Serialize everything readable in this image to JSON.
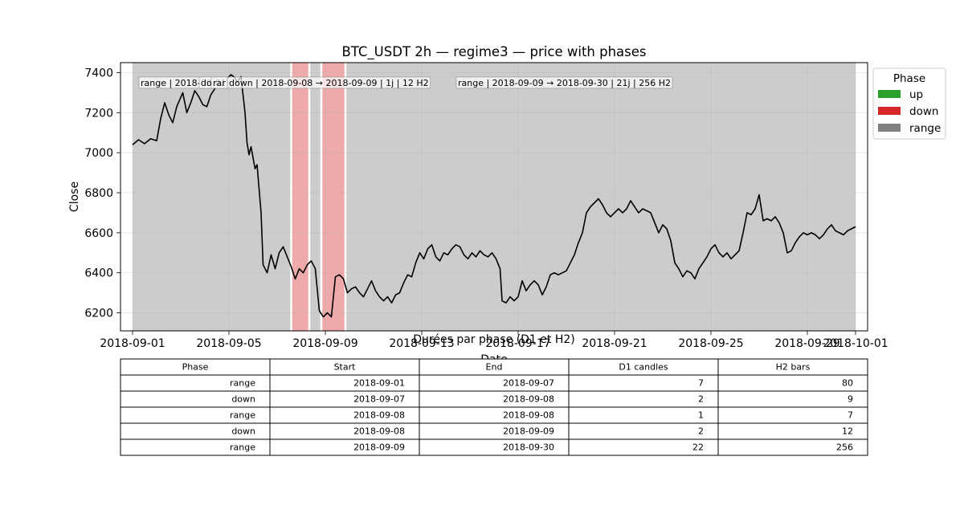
{
  "chart_data": {
    "type": "line",
    "title": "BTC_USDT 2h — regime3 — price with phases",
    "xlabel": "Date",
    "ylabel": "Close",
    "xlim": [
      "2018-08-31T12:00",
      "2018-10-01T12:00"
    ],
    "ylim": [
      6110,
      7450
    ],
    "x_ticks": [
      "2018-09-01",
      "2018-09-05",
      "2018-09-09",
      "2018-09-13",
      "2018-09-17",
      "2018-09-21",
      "2018-09-25",
      "2018-09-29",
      "2018-10-01"
    ],
    "y_ticks": [
      6200,
      6400,
      6600,
      6800,
      7000,
      7200,
      7400
    ],
    "grid": true,
    "legend": {
      "title": "Phase",
      "placement": "outside-top-right",
      "entries": [
        {
          "label": "up",
          "color": "#2ca02c"
        },
        {
          "label": "down",
          "color": "#d62728"
        },
        {
          "label": "range",
          "color": "#808080"
        }
      ]
    },
    "phases": [
      {
        "phase": "range",
        "start": "2018-09-01T00:00",
        "end": "2018-09-07T14:00"
      },
      {
        "phase": "down",
        "start": "2018-09-07T14:00",
        "end": "2018-09-08T08:00"
      },
      {
        "phase": "range",
        "start": "2018-09-08T08:00",
        "end": "2018-09-08T20:00"
      },
      {
        "phase": "down",
        "start": "2018-09-08T20:00",
        "end": "2018-09-09T20:00"
      },
      {
        "phase": "range",
        "start": "2018-09-09T20:00",
        "end": "2018-10-01T00:00"
      }
    ],
    "annotations": [
      {
        "text": "range | 2018-09-01",
        "x": "2018-09-01T00:00",
        "y": 7350
      },
      {
        "text": "do",
        "x": "2018-09-03T12:00",
        "y": 7350
      },
      {
        "text": "rar",
        "x": "2018-09-04T00:00",
        "y": 7350
      },
      {
        "text": "down | 2018-09-08 → 2018-09-09 | 1j | 12 H2",
        "x": "2018-09-04T16:00",
        "y": 7350
      },
      {
        "text": "range | 2018-09-09 → 2018-09-30 | 21j | 256 H2",
        "x": "2018-09-14T04:00",
        "y": 7350
      }
    ],
    "series": [
      {
        "name": "Close",
        "color": "#000000",
        "points": [
          [
            "2018-09-01T00:00",
            7040
          ],
          [
            "2018-09-01T06:00",
            7065
          ],
          [
            "2018-09-01T12:00",
            7045
          ],
          [
            "2018-09-01T18:00",
            7070
          ],
          [
            "2018-09-02T00:00",
            7060
          ],
          [
            "2018-09-02T04:00",
            7170
          ],
          [
            "2018-09-02T08:00",
            7250
          ],
          [
            "2018-09-02T12:00",
            7190
          ],
          [
            "2018-09-02T16:00",
            7150
          ],
          [
            "2018-09-02T20:00",
            7230
          ],
          [
            "2018-09-03T02:00",
            7300
          ],
          [
            "2018-09-03T06:00",
            7200
          ],
          [
            "2018-09-03T10:00",
            7250
          ],
          [
            "2018-09-03T14:00",
            7310
          ],
          [
            "2018-09-03T18:00",
            7280
          ],
          [
            "2018-09-03T22:00",
            7240
          ],
          [
            "2018-09-04T02:00",
            7230
          ],
          [
            "2018-09-04T06:00",
            7290
          ],
          [
            "2018-09-04T10:00",
            7320
          ],
          [
            "2018-09-04T14:00",
            7350
          ],
          [
            "2018-09-04T18:00",
            7330
          ],
          [
            "2018-09-04T22:00",
            7370
          ],
          [
            "2018-09-05T02:00",
            7390
          ],
          [
            "2018-09-05T06:00",
            7375
          ],
          [
            "2018-09-05T08:00",
            7350
          ],
          [
            "2018-09-05T12:00",
            7380
          ],
          [
            "2018-09-05T16:00",
            7200
          ],
          [
            "2018-09-05T18:00",
            7050
          ],
          [
            "2018-09-05T20:00",
            6990
          ],
          [
            "2018-09-05T22:00",
            7030
          ],
          [
            "2018-09-06T02:00",
            6920
          ],
          [
            "2018-09-06T04:00",
            6940
          ],
          [
            "2018-09-06T08:00",
            6700
          ],
          [
            "2018-09-06T10:00",
            6440
          ],
          [
            "2018-09-06T14:00",
            6400
          ],
          [
            "2018-09-06T18:00",
            6490
          ],
          [
            "2018-09-06T22:00",
            6420
          ],
          [
            "2018-09-07T02:00",
            6500
          ],
          [
            "2018-09-07T06:00",
            6530
          ],
          [
            "2018-09-07T10:00",
            6480
          ],
          [
            "2018-09-07T14:00",
            6430
          ],
          [
            "2018-09-07T18:00",
            6370
          ],
          [
            "2018-09-07T22:00",
            6420
          ],
          [
            "2018-09-08T02:00",
            6400
          ],
          [
            "2018-09-08T06:00",
            6440
          ],
          [
            "2018-09-08T10:00",
            6460
          ],
          [
            "2018-09-08T14:00",
            6420
          ],
          [
            "2018-09-08T18:00",
            6210
          ],
          [
            "2018-09-08T22:00",
            6180
          ],
          [
            "2018-09-09T02:00",
            6200
          ],
          [
            "2018-09-09T06:00",
            6180
          ],
          [
            "2018-09-09T10:00",
            6380
          ],
          [
            "2018-09-09T14:00",
            6390
          ],
          [
            "2018-09-09T18:00",
            6370
          ],
          [
            "2018-09-09T22:00",
            6300
          ],
          [
            "2018-09-10T02:00",
            6320
          ],
          [
            "2018-09-10T06:00",
            6330
          ],
          [
            "2018-09-10T10:00",
            6300
          ],
          [
            "2018-09-10T14:00",
            6280
          ],
          [
            "2018-09-10T18:00",
            6320
          ],
          [
            "2018-09-10T22:00",
            6360
          ],
          [
            "2018-09-11T02:00",
            6310
          ],
          [
            "2018-09-11T06:00",
            6280
          ],
          [
            "2018-09-11T10:00",
            6260
          ],
          [
            "2018-09-11T14:00",
            6280
          ],
          [
            "2018-09-11T18:00",
            6250
          ],
          [
            "2018-09-11T22:00",
            6290
          ],
          [
            "2018-09-12T02:00",
            6300
          ],
          [
            "2018-09-12T06:00",
            6350
          ],
          [
            "2018-09-12T10:00",
            6390
          ],
          [
            "2018-09-12T14:00",
            6380
          ],
          [
            "2018-09-12T18:00",
            6450
          ],
          [
            "2018-09-12T22:00",
            6500
          ],
          [
            "2018-09-13T02:00",
            6470
          ],
          [
            "2018-09-13T06:00",
            6520
          ],
          [
            "2018-09-13T10:00",
            6540
          ],
          [
            "2018-09-13T14:00",
            6480
          ],
          [
            "2018-09-13T18:00",
            6460
          ],
          [
            "2018-09-13T22:00",
            6500
          ],
          [
            "2018-09-14T02:00",
            6490
          ],
          [
            "2018-09-14T06:00",
            6520
          ],
          [
            "2018-09-14T10:00",
            6540
          ],
          [
            "2018-09-14T14:00",
            6530
          ],
          [
            "2018-09-14T18:00",
            6490
          ],
          [
            "2018-09-14T22:00",
            6470
          ],
          [
            "2018-09-15T02:00",
            6500
          ],
          [
            "2018-09-15T06:00",
            6480
          ],
          [
            "2018-09-15T10:00",
            6510
          ],
          [
            "2018-09-15T14:00",
            6490
          ],
          [
            "2018-09-15T18:00",
            6480
          ],
          [
            "2018-09-15T22:00",
            6500
          ],
          [
            "2018-09-16T02:00",
            6470
          ],
          [
            "2018-09-16T06:00",
            6420
          ],
          [
            "2018-09-16T08:00",
            6260
          ],
          [
            "2018-09-16T12:00",
            6250
          ],
          [
            "2018-09-16T16:00",
            6280
          ],
          [
            "2018-09-16T20:00",
            6260
          ],
          [
            "2018-09-17T00:00",
            6280
          ],
          [
            "2018-09-17T04:00",
            6360
          ],
          [
            "2018-09-17T08:00",
            6310
          ],
          [
            "2018-09-17T12:00",
            6340
          ],
          [
            "2018-09-17T16:00",
            6360
          ],
          [
            "2018-09-17T20:00",
            6340
          ],
          [
            "2018-09-18T00:00",
            6290
          ],
          [
            "2018-09-18T04:00",
            6330
          ],
          [
            "2018-09-18T08:00",
            6390
          ],
          [
            "2018-09-18T12:00",
            6400
          ],
          [
            "2018-09-18T16:00",
            6390
          ],
          [
            "2018-09-18T20:00",
            6400
          ],
          [
            "2018-09-19T00:00",
            6410
          ],
          [
            "2018-09-19T04:00",
            6450
          ],
          [
            "2018-09-19T08:00",
            6490
          ],
          [
            "2018-09-19T12:00",
            6550
          ],
          [
            "2018-09-19T16:00",
            6600
          ],
          [
            "2018-09-19T20:00",
            6700
          ],
          [
            "2018-09-20T00:00",
            6730
          ],
          [
            "2018-09-20T04:00",
            6750
          ],
          [
            "2018-09-20T08:00",
            6770
          ],
          [
            "2018-09-20T12:00",
            6740
          ],
          [
            "2018-09-20T16:00",
            6700
          ],
          [
            "2018-09-20T20:00",
            6680
          ],
          [
            "2018-09-21T00:00",
            6700
          ],
          [
            "2018-09-21T04:00",
            6720
          ],
          [
            "2018-09-21T08:00",
            6700
          ],
          [
            "2018-09-21T12:00",
            6720
          ],
          [
            "2018-09-21T16:00",
            6760
          ],
          [
            "2018-09-21T20:00",
            6730
          ],
          [
            "2018-09-22T00:00",
            6700
          ],
          [
            "2018-09-22T04:00",
            6720
          ],
          [
            "2018-09-22T08:00",
            6710
          ],
          [
            "2018-09-22T12:00",
            6700
          ],
          [
            "2018-09-22T16:00",
            6650
          ],
          [
            "2018-09-22T20:00",
            6600
          ],
          [
            "2018-09-23T00:00",
            6640
          ],
          [
            "2018-09-23T04:00",
            6620
          ],
          [
            "2018-09-23T08:00",
            6560
          ],
          [
            "2018-09-23T12:00",
            6450
          ],
          [
            "2018-09-23T16:00",
            6420
          ],
          [
            "2018-09-23T20:00",
            6380
          ],
          [
            "2018-09-24T00:00",
            6410
          ],
          [
            "2018-09-24T04:00",
            6400
          ],
          [
            "2018-09-24T08:00",
            6370
          ],
          [
            "2018-09-24T12:00",
            6420
          ],
          [
            "2018-09-24T16:00",
            6450
          ],
          [
            "2018-09-24T20:00",
            6480
          ],
          [
            "2018-09-25T00:00",
            6520
          ],
          [
            "2018-09-25T04:00",
            6540
          ],
          [
            "2018-09-25T08:00",
            6500
          ],
          [
            "2018-09-25T12:00",
            6480
          ],
          [
            "2018-09-25T16:00",
            6500
          ],
          [
            "2018-09-25T20:00",
            6470
          ],
          [
            "2018-09-26T00:00",
            6490
          ],
          [
            "2018-09-26T04:00",
            6510
          ],
          [
            "2018-09-26T08:00",
            6600
          ],
          [
            "2018-09-26T12:00",
            6700
          ],
          [
            "2018-09-26T16:00",
            6690
          ],
          [
            "2018-09-26T20:00",
            6720
          ],
          [
            "2018-09-27T00:00",
            6790
          ],
          [
            "2018-09-27T04:00",
            6660
          ],
          [
            "2018-09-27T08:00",
            6670
          ],
          [
            "2018-09-27T12:00",
            6660
          ],
          [
            "2018-09-27T16:00",
            6680
          ],
          [
            "2018-09-27T20:00",
            6650
          ],
          [
            "2018-09-28T00:00",
            6600
          ],
          [
            "2018-09-28T04:00",
            6500
          ],
          [
            "2018-09-28T08:00",
            6510
          ],
          [
            "2018-09-28T12:00",
            6550
          ],
          [
            "2018-09-28T16:00",
            6580
          ],
          [
            "2018-09-28T20:00",
            6600
          ],
          [
            "2018-09-29T00:00",
            6590
          ],
          [
            "2018-09-29T04:00",
            6600
          ],
          [
            "2018-09-29T08:00",
            6590
          ],
          [
            "2018-09-29T12:00",
            6570
          ],
          [
            "2018-09-29T16:00",
            6590
          ],
          [
            "2018-09-29T20:00",
            6620
          ],
          [
            "2018-09-30T00:00",
            6640
          ],
          [
            "2018-09-30T04:00",
            6610
          ],
          [
            "2018-09-30T08:00",
            6600
          ],
          [
            "2018-09-30T12:00",
            6590
          ],
          [
            "2018-09-30T16:00",
            6610
          ],
          [
            "2018-09-30T20:00",
            6620
          ],
          [
            "2018-10-01T00:00",
            6630
          ]
        ]
      }
    ]
  },
  "table": {
    "title": "Durées par phase (D1 et H2)",
    "columns": [
      "Phase",
      "Start",
      "End",
      "D1 candles",
      "H2 bars"
    ],
    "rows": [
      [
        "range",
        "2018-09-01",
        "2018-09-07",
        "7",
        "80"
      ],
      [
        "down",
        "2018-09-07",
        "2018-09-08",
        "2",
        "9"
      ],
      [
        "range",
        "2018-09-08",
        "2018-09-08",
        "1",
        "7"
      ],
      [
        "down",
        "2018-09-08",
        "2018-09-09",
        "2",
        "12"
      ],
      [
        "range",
        "2018-09-09",
        "2018-09-30",
        "22",
        "256"
      ]
    ]
  }
}
